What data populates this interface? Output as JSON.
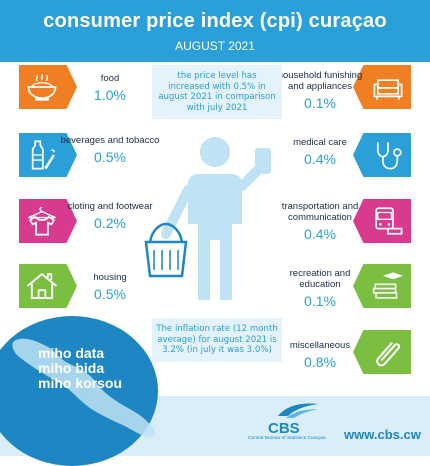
{
  "header": {
    "title": "consumer price index (cpi) curaçao",
    "subtitle": "AUGUST 2021"
  },
  "notes": {
    "top": "the price level has increased with 0.5% in august 2021 in comparison with july 2021",
    "bottom": "The inflation rate (12  month average) for august 2021 is 3.2% (in july it was 3.0%)"
  },
  "categories_left": [
    {
      "label": "food",
      "value": "1.0%",
      "icon": "food-bowl-icon",
      "color": "#f07e22"
    },
    {
      "label": "beverages and tobacco",
      "value": "0.5%",
      "icon": "bottle-cigarette-icon",
      "color": "#2a9fd8"
    },
    {
      "label": "cloting and footwear",
      "value": "0.2%",
      "icon": "shirt-hanger-icon",
      "color": "#d83a8e"
    },
    {
      "label": "housing",
      "value": "0.5%",
      "icon": "house-icon",
      "color": "#7bbf41"
    }
  ],
  "categories_right": [
    {
      "label": "household funishing and appliances",
      "value": "0.1%",
      "icon": "sofa-icon",
      "color": "#f07e22"
    },
    {
      "label": "medical care",
      "value": "0.4%",
      "icon": "stethoscope-icon",
      "color": "#2a9fd8"
    },
    {
      "label": "transportation and communication",
      "value": "0.4%",
      "icon": "bus-car-icon",
      "color": "#d83a8e"
    },
    {
      "label": "recreation and education",
      "value": "0.1%",
      "icon": "books-cap-icon",
      "color": "#7bbf41"
    },
    {
      "label": "miscellaneous",
      "value": "0.8%",
      "icon": "paperclip-icon",
      "color": "#7bbf41"
    }
  ],
  "slogan": [
    "miho data",
    "miho bida",
    "miho korsou"
  ],
  "logo": {
    "name": "CBS",
    "subtitle": "Central Bureau of Statistics Curaçao"
  },
  "website": "www.cbs.cw"
}
